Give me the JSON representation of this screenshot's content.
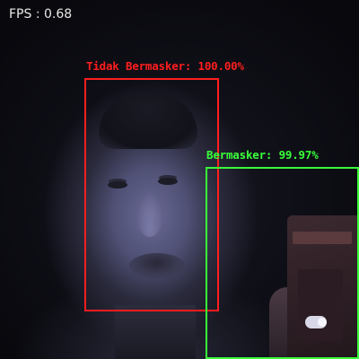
{
  "overlay": {
    "fps_text": "FPS : 0.68"
  },
  "detections": [
    {
      "label": "Tidak Bermasker: 100.00%",
      "color": "#ff1e1e"
    },
    {
      "label": "Bermasker: 99.97%",
      "color": "#39ff39"
    }
  ]
}
